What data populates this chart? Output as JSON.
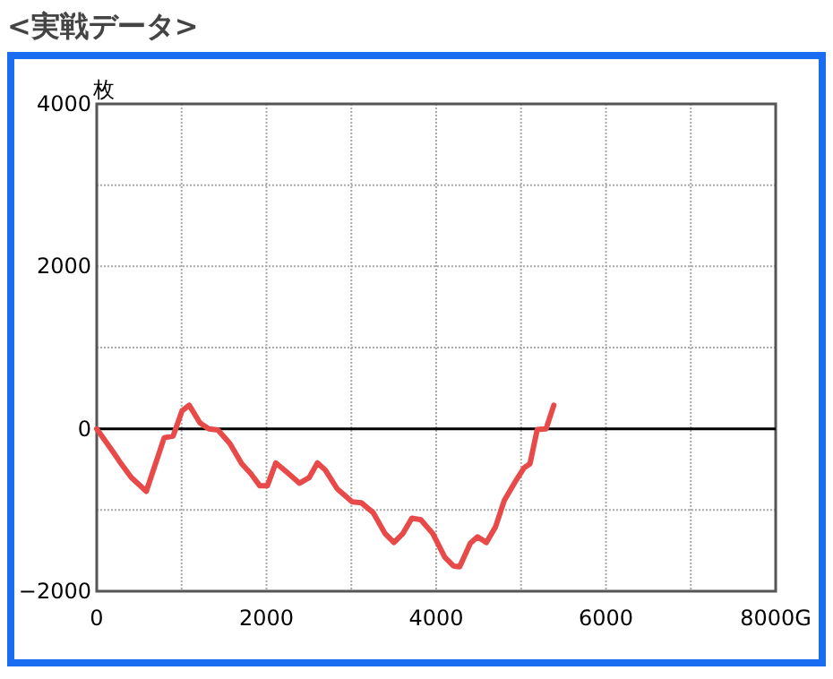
{
  "chart_data": {
    "type": "line",
    "title": "<実戦データ>",
    "ylabel": "枚",
    "x": [
      0,
      196,
      267,
      407,
      584,
      795,
      900,
      1005,
      1090,
      1217,
      1322,
      1428,
      1568,
      1709,
      1814,
      1920,
      2011,
      2110,
      2236,
      2390,
      2504,
      2601,
      2694,
      2834,
      3010,
      3116,
      3256,
      3397,
      3502,
      3608,
      3713,
      3819,
      3960,
      4100,
      4205,
      4276,
      4402,
      4487,
      4592,
      4698,
      4803,
      4944,
      5036,
      5105,
      5190,
      5295,
      5386
    ],
    "series": [
      {
        "color": "#e84a4a",
        "values": [
          0,
          -290,
          -400,
          -600,
          -770,
          -110,
          -90,
          220,
          290,
          70,
          0,
          -15,
          -180,
          -430,
          -550,
          -700,
          -700,
          -420,
          -530,
          -670,
          -600,
          -420,
          -510,
          -740,
          -900,
          -910,
          -1030,
          -1290,
          -1400,
          -1290,
          -1100,
          -1120,
          -1290,
          -1580,
          -1690,
          -1700,
          -1410,
          -1330,
          -1400,
          -1210,
          -880,
          -630,
          -480,
          -430,
          -10,
          0,
          290
        ]
      }
    ],
    "xlim": [
      0,
      8000
    ],
    "ylim": [
      -2000,
      4000
    ],
    "xticks": [
      0,
      {
        "value": 1000,
        "label": null
      },
      2000,
      {
        "value": 3000,
        "label": null
      },
      4000,
      {
        "value": 5000,
        "label": null
      },
      6000,
      {
        "value": 7000,
        "label": null
      },
      {
        "value": 8000,
        "label": "8000G"
      }
    ],
    "yticks": [
      -2000,
      {
        "value": -1000,
        "label": null
      },
      0,
      {
        "value": 1000,
        "label": null
      },
      2000,
      {
        "value": 3000,
        "label": null
      },
      4000
    ],
    "grid": true,
    "ref_lines": [
      {
        "axis": "y",
        "value": 0,
        "label": null,
        "color": "#000000"
      }
    ]
  }
}
